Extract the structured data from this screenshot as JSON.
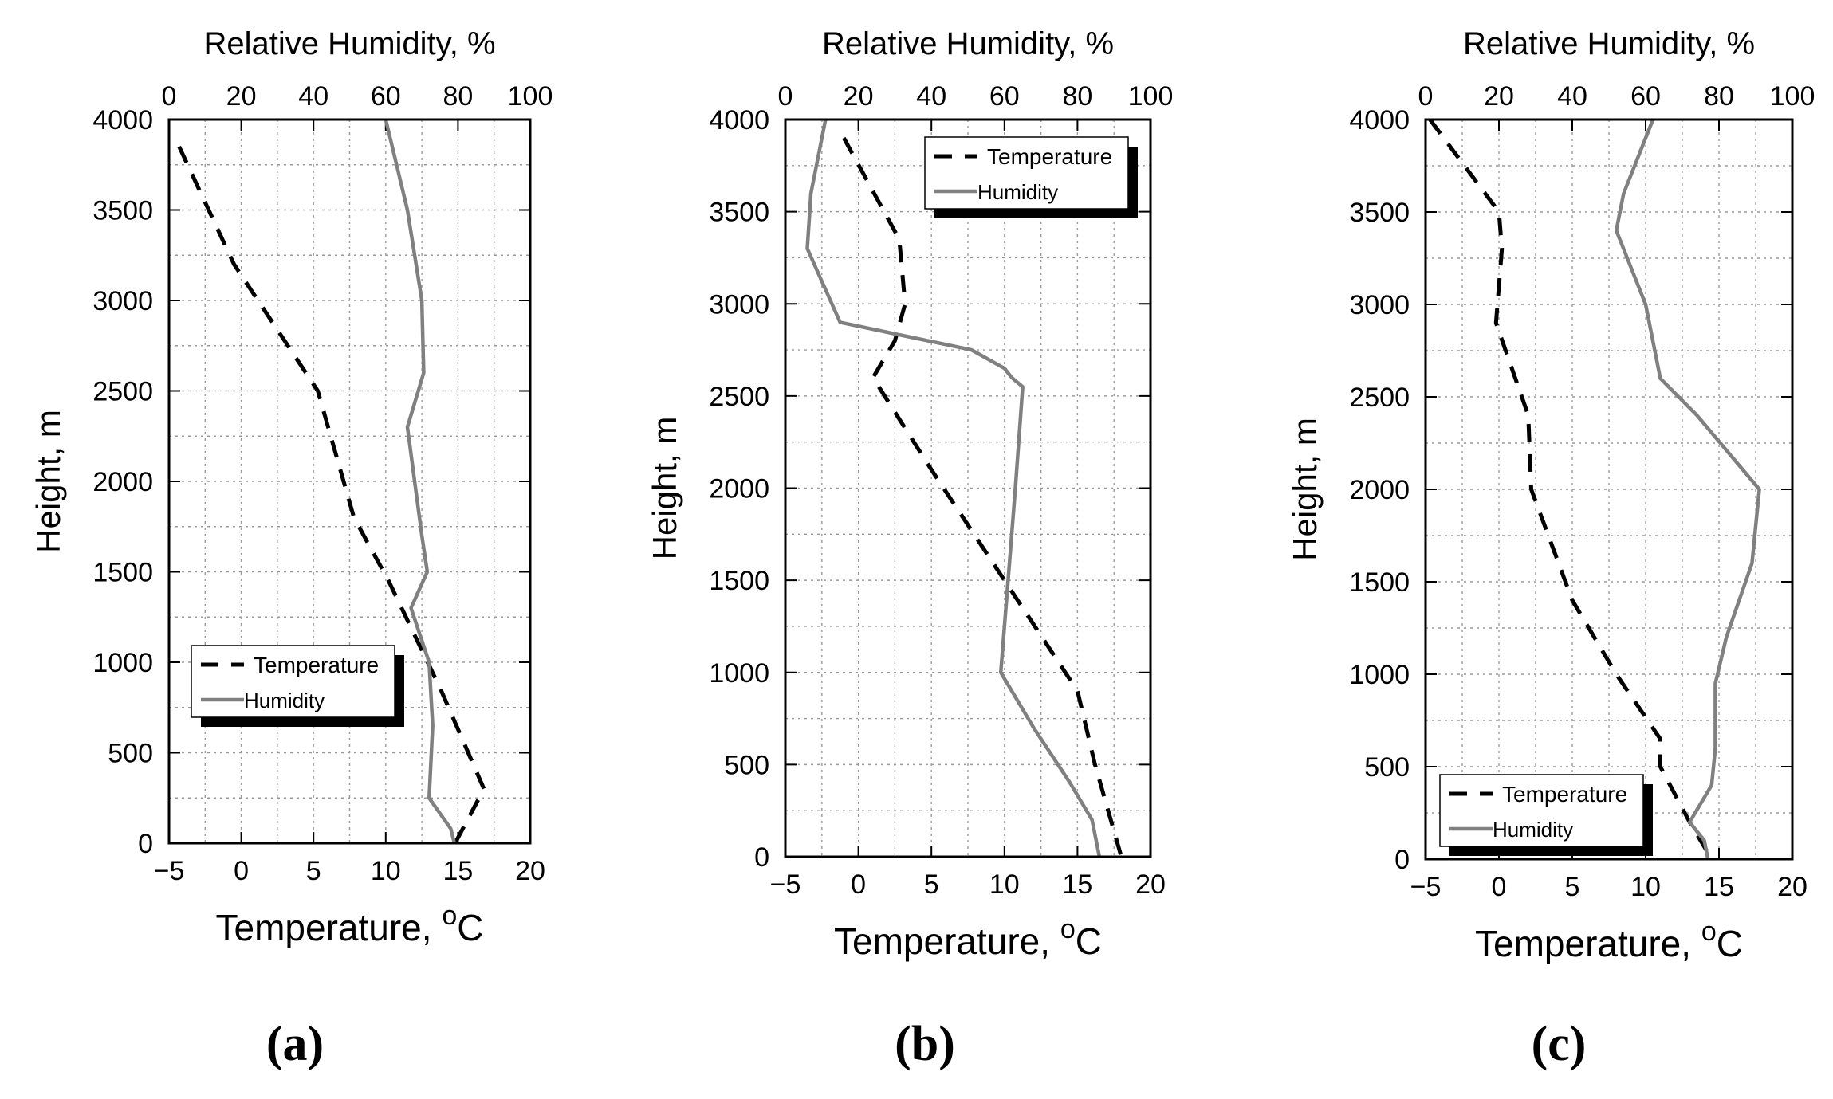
{
  "chart_data": [
    {
      "type": "line",
      "panel_label": "(a)",
      "xlabel_top": "Relative Humidity, %",
      "xlabel_bottom": "Temperature, ",
      "xlabel_bottom_unit_sup": "o",
      "xlabel_bottom_unit": "C",
      "ylabel": "Height, m",
      "xlim": [
        -5,
        20
      ],
      "x2lim": [
        0,
        100
      ],
      "ylim": [
        0,
        4000
      ],
      "xticks": [
        -5,
        0,
        5,
        10,
        15,
        20
      ],
      "xtick_labels": [
        "−5",
        "0",
        "5",
        "10",
        "15",
        "20"
      ],
      "x2ticks": [
        0,
        20,
        40,
        60,
        80,
        100
      ],
      "x2tick_labels": [
        "0",
        "20",
        "40",
        "60",
        "80",
        "100"
      ],
      "yticks": [
        0,
        500,
        1000,
        1500,
        2000,
        2500,
        3000,
        3500,
        4000
      ],
      "ytick_labels": [
        "0",
        "500",
        "1000",
        "1500",
        "2000",
        "2500",
        "3000",
        "3500",
        "4000"
      ],
      "grid": true,
      "legend_position": "lower-left",
      "legend": [
        "Temperature",
        "Humidity"
      ],
      "series": [
        {
          "name": "Temperature",
          "axis": "bottom",
          "style": "dashed",
          "color": "#000000",
          "points": [
            [
              -4.3,
              3850
            ],
            [
              -0.5,
              3200
            ],
            [
              5.3,
              2500
            ],
            [
              7.8,
              1800
            ],
            [
              10.2,
              1450
            ],
            [
              13.8,
              850
            ],
            [
              16.8,
              300
            ],
            [
              14.8,
              0
            ]
          ]
        },
        {
          "name": "Humidity",
          "axis": "top",
          "style": "solid",
          "color": "#808080",
          "points": [
            [
              60,
              4000
            ],
            [
              66,
              3500
            ],
            [
              70,
              3000
            ],
            [
              70.5,
              2600
            ],
            [
              66,
              2300
            ],
            [
              70,
              1700
            ],
            [
              71.5,
              1500
            ],
            [
              67,
              1300
            ],
            [
              72,
              1000
            ],
            [
              73,
              650
            ],
            [
              72,
              250
            ],
            [
              78,
              80
            ],
            [
              79,
              0
            ]
          ]
        }
      ]
    },
    {
      "type": "line",
      "panel_label": "(b)",
      "xlabel_top": "Relative Humidity, %",
      "xlabel_bottom": "Temperature, ",
      "xlabel_bottom_unit_sup": "o",
      "xlabel_bottom_unit": "C",
      "ylabel": "Height, m",
      "xlim": [
        -5,
        20
      ],
      "x2lim": [
        0,
        100
      ],
      "ylim": [
        0,
        4000
      ],
      "xticks": [
        -5,
        0,
        5,
        10,
        15,
        20
      ],
      "xtick_labels": [
        "−5",
        "0",
        "5",
        "10",
        "15",
        "20"
      ],
      "x2ticks": [
        0,
        20,
        40,
        60,
        80,
        100
      ],
      "x2tick_labels": [
        "0",
        "20",
        "40",
        "60",
        "80",
        "100"
      ],
      "yticks": [
        0,
        500,
        1000,
        1500,
        2000,
        2500,
        3000,
        3500,
        4000
      ],
      "ytick_labels": [
        "0",
        "500",
        "1000",
        "1500",
        "2000",
        "2500",
        "3000",
        "3500",
        "4000"
      ],
      "grid": true,
      "legend_position": "top-right",
      "legend": [
        "Temperature",
        "Humidity"
      ],
      "series": [
        {
          "name": "Temperature",
          "axis": "bottom",
          "style": "dashed",
          "color": "#000000",
          "points": [
            [
              -1,
              3900
            ],
            [
              2.8,
              3350
            ],
            [
              3.2,
              3000
            ],
            [
              2.5,
              2800
            ],
            [
              1,
              2600
            ],
            [
              5,
              2100
            ],
            [
              10,
              1500
            ],
            [
              15,
              900
            ],
            [
              16.2,
              500
            ],
            [
              18,
              0
            ]
          ]
        },
        {
          "name": "Humidity",
          "axis": "top",
          "style": "solid",
          "color": "#808080",
          "points": [
            [
              11,
              4000
            ],
            [
              7,
              3600
            ],
            [
              6,
              3300
            ],
            [
              15,
              2900
            ],
            [
              51,
              2750
            ],
            [
              60,
              2650
            ],
            [
              62,
              2600
            ],
            [
              65,
              2550
            ],
            [
              63,
              2000
            ],
            [
              61,
              1500
            ],
            [
              59,
              1000
            ],
            [
              68,
              700
            ],
            [
              78,
              400
            ],
            [
              84,
              200
            ],
            [
              86,
              0
            ]
          ]
        }
      ]
    },
    {
      "type": "line",
      "panel_label": "(c)",
      "xlabel_top": "Relative Humidity, %",
      "xlabel_bottom": "Temperature, ",
      "xlabel_bottom_unit_sup": "o",
      "xlabel_bottom_unit": "C",
      "ylabel": "Height, m",
      "xlim": [
        -5,
        20
      ],
      "x2lim": [
        0,
        100
      ],
      "ylim": [
        0,
        4000
      ],
      "xticks": [
        -5,
        0,
        5,
        10,
        15,
        20
      ],
      "xtick_labels": [
        "−5",
        "0",
        "5",
        "10",
        "15",
        "20"
      ],
      "x2ticks": [
        0,
        20,
        40,
        60,
        80,
        100
      ],
      "x2tick_labels": [
        "0",
        "20",
        "40",
        "60",
        "80",
        "100"
      ],
      "yticks": [
        0,
        500,
        1000,
        1500,
        2000,
        2500,
        3000,
        3500,
        4000
      ],
      "ytick_labels": [
        "0",
        "500",
        "1000",
        "1500",
        "2000",
        "2500",
        "3000",
        "3500",
        "4000"
      ],
      "grid": true,
      "legend_position": "lower-left",
      "legend": [
        "Temperature",
        "Humidity"
      ],
      "series": [
        {
          "name": "Temperature",
          "axis": "bottom",
          "style": "dashed",
          "color": "#000000",
          "points": [
            [
              -4.7,
              4000
            ],
            [
              0,
              3500
            ],
            [
              0.2,
              3300
            ],
            [
              -0.2,
              2900
            ],
            [
              2,
              2400
            ],
            [
              2.2,
              2000
            ],
            [
              5,
              1400
            ],
            [
              8,
              1000
            ],
            [
              11,
              650
            ],
            [
              11,
              500
            ],
            [
              13,
              200
            ],
            [
              14.5,
              0
            ]
          ]
        },
        {
          "name": "Humidity",
          "axis": "top",
          "style": "solid",
          "color": "#808080",
          "points": [
            [
              62,
              4000
            ],
            [
              54,
              3600
            ],
            [
              52,
              3400
            ],
            [
              60,
              3000
            ],
            [
              64,
              2600
            ],
            [
              74,
              2400
            ],
            [
              91,
              2000
            ],
            [
              89,
              1600
            ],
            [
              82,
              1200
            ],
            [
              79,
              950
            ],
            [
              79,
              600
            ],
            [
              78,
              400
            ],
            [
              72,
              200
            ],
            [
              76,
              100
            ],
            [
              77,
              0
            ]
          ]
        }
      ]
    }
  ]
}
